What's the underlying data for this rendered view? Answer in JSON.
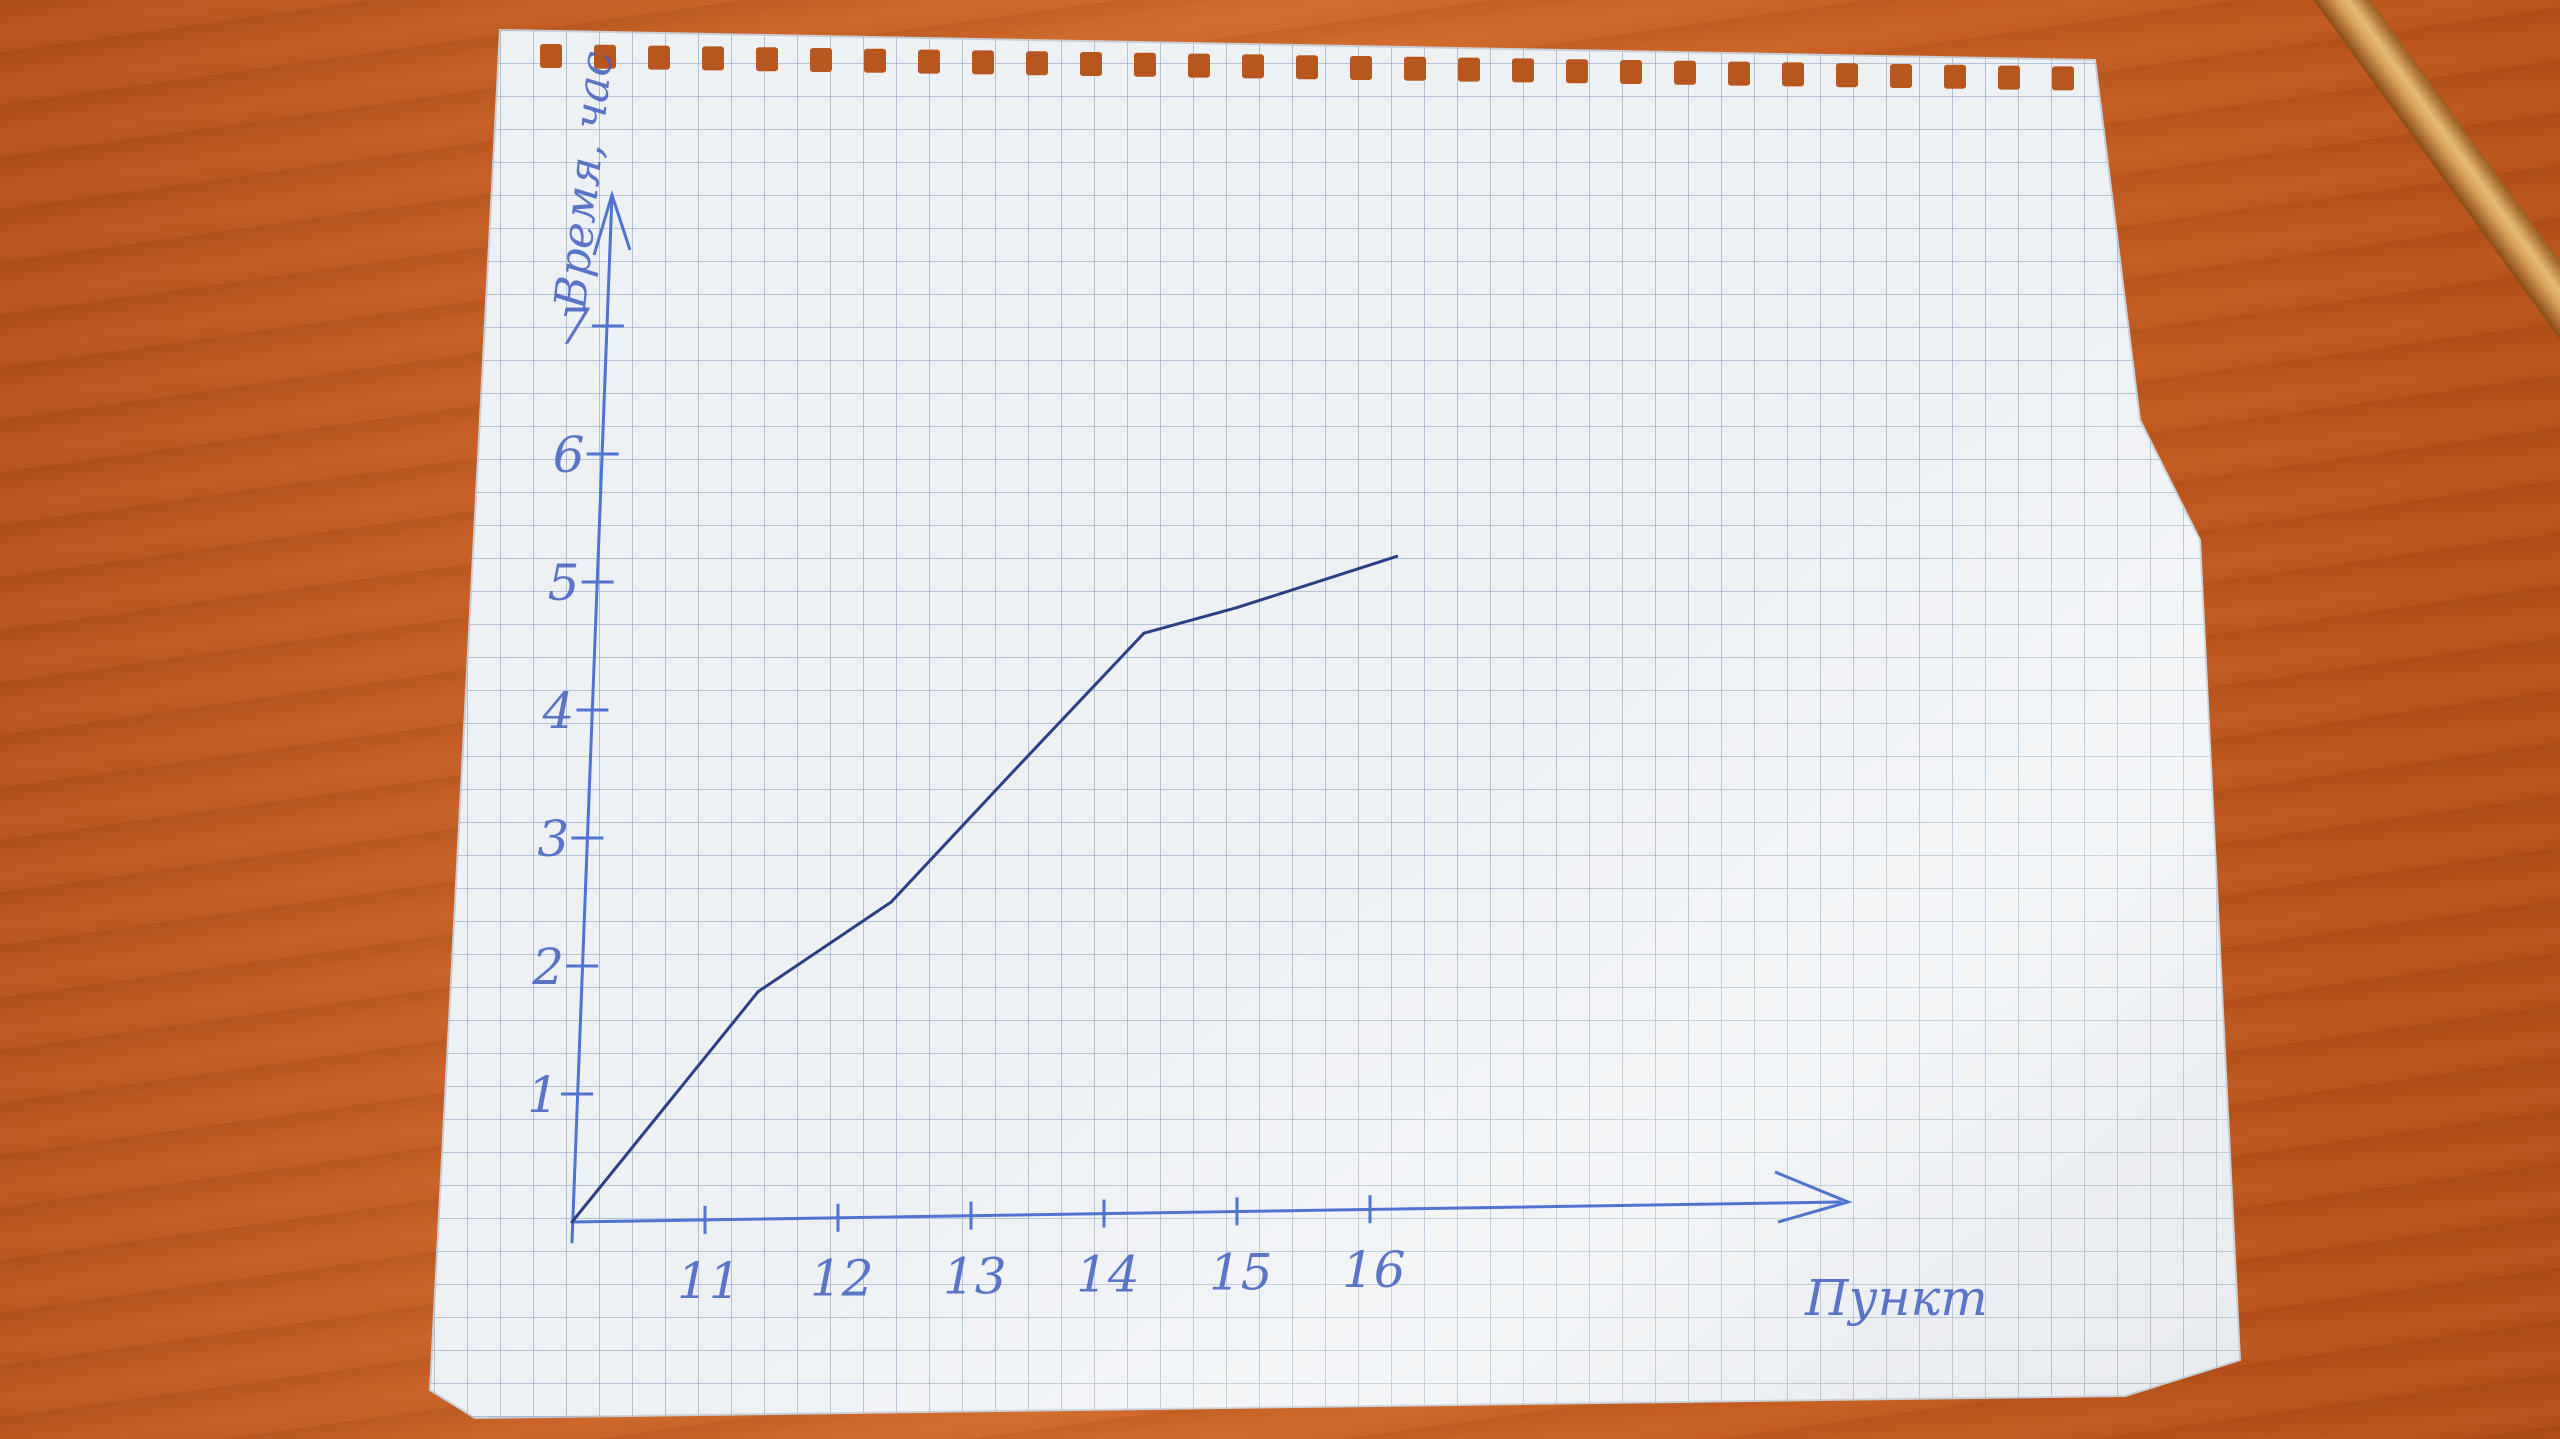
{
  "scene": {
    "background_color": "#c45f26",
    "paper_color": "#eef1f4",
    "grid_color": "#9fb3cc",
    "ink_axis_color": "#4f74cf",
    "ink_plot_color": "#2c3f86"
  },
  "chart_data": {
    "type": "line",
    "xlabel": "Пункт",
    "ylabel": "Время, час",
    "x_tick_labels": [
      "11",
      "12",
      "13",
      "14",
      "15",
      "16"
    ],
    "y_tick_labels": [
      "1",
      "2",
      "3",
      "4",
      "5",
      "6",
      "7"
    ],
    "xlim": [
      10,
      17.5
    ],
    "ylim": [
      0,
      8
    ],
    "series": [
      {
        "x": [
          10,
          10.7,
          11.4,
          12.4,
          13.3,
          14.3,
          15.0,
          16.2
        ],
        "y": [
          0,
          0.9,
          1.8,
          2.5,
          3.5,
          4.6,
          4.8,
          5.2
        ]
      }
    ]
  }
}
